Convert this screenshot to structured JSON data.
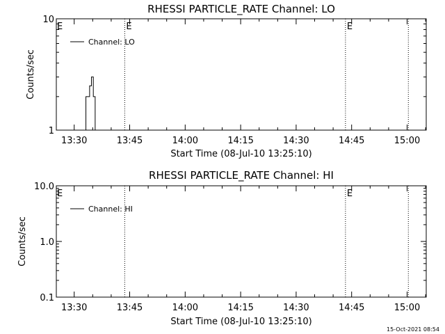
{
  "chart_data": [
    {
      "type": "line",
      "title": "RHESSI PARTICLE_RATE Channel: LO",
      "xlabel": "Start Time (08-Jul-10 13:25:10)",
      "ylabel": "Counts/sec",
      "yscale": "log",
      "ylim": [
        1,
        10
      ],
      "ytick_labels": [
        "1",
        "10"
      ],
      "xlim": [
        "13:25:10",
        "15:05:10"
      ],
      "xtick_labels": [
        "13:30",
        "13:45",
        "14:00",
        "14:15",
        "14:30",
        "14:45",
        "15:00"
      ],
      "legend": {
        "position": "top-left",
        "entries": [
          "Channel: LO"
        ]
      },
      "markers": [
        {
          "time": "13:43:40",
          "label": "E"
        },
        {
          "time": "14:43:20",
          "label": "E"
        },
        {
          "time": "15:00:20",
          "label": ""
        }
      ],
      "start_marker_label": "E",
      "series": [
        {
          "name": "Channel: LO",
          "step": true,
          "x": [
            "13:32:40",
            "13:33:10",
            "13:33:40",
            "13:34:10",
            "13:34:40",
            "13:35:10",
            "13:35:40"
          ],
          "y": [
            1,
            2,
            2,
            2.5,
            3,
            2,
            1
          ]
        }
      ]
    },
    {
      "type": "line",
      "title": "RHESSI PARTICLE_RATE Channel: HI",
      "xlabel": "Start Time (08-Jul-10 13:25:10)",
      "ylabel": "Counts/sec",
      "yscale": "log",
      "ylim": [
        0.1,
        10
      ],
      "ytick_labels": [
        "0.1",
        "1.0",
        "10.0"
      ],
      "xlim": [
        "13:25:10",
        "15:05:10"
      ],
      "xtick_labels": [
        "13:30",
        "13:45",
        "14:00",
        "14:15",
        "14:30",
        "14:45",
        "15:00"
      ],
      "legend": {
        "position": "top-left",
        "entries": [
          "Channel: HI"
        ]
      },
      "markers": [
        {
          "time": "13:43:40",
          "label": ""
        },
        {
          "time": "14:43:20",
          "label": "E"
        },
        {
          "time": "15:00:20",
          "label": ""
        }
      ],
      "start_marker_label": "E",
      "series": [
        {
          "name": "Channel: HI",
          "step": true,
          "x": [],
          "y": []
        }
      ]
    }
  ],
  "footer": {
    "timestamp": "15-Oct-2021 08:54"
  }
}
